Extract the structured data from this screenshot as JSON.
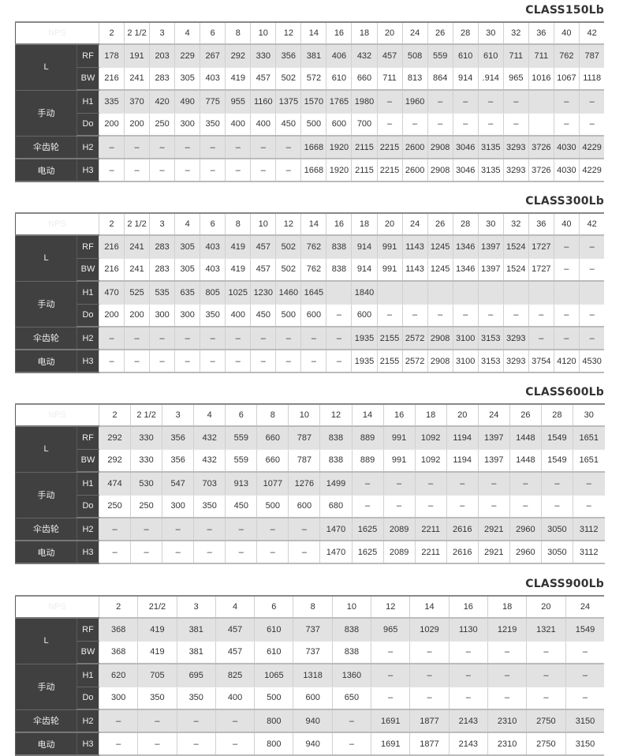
{
  "row_labels": {
    "nps": "NPS",
    "l": "L",
    "rf": "RF",
    "bw": "BW",
    "manual": "手动",
    "h1": "H1",
    "do": "Do",
    "bevel": "伞齿轮",
    "h2": "H2",
    "electric": "电动",
    "h3": "H3"
  },
  "tables": [
    {
      "title": "CLASS150Lb",
      "nps": [
        "2",
        "2 1/2",
        "3",
        "4",
        "6",
        "8",
        "10",
        "12",
        "14",
        "16",
        "18",
        "20",
        "24",
        "26",
        "28",
        "30",
        "32",
        "36",
        "40",
        "42"
      ],
      "rf": [
        "178",
        "191",
        "203",
        "229",
        "267",
        "292",
        "330",
        "356",
        "381",
        "406",
        "432",
        "457",
        "508",
        "559",
        "610",
        "610",
        "711",
        "711",
        "762",
        "787"
      ],
      "bw": [
        "216",
        "241",
        "283",
        "305",
        "403",
        "419",
        "457",
        "502",
        "572",
        "610",
        "660",
        "711",
        "813",
        "864",
        "914",
        ".914",
        "965",
        "1016",
        "1067",
        "1118"
      ],
      "h1": [
        "335",
        "370",
        "420",
        "490",
        "775",
        "955",
        "1160",
        "1375",
        "1570",
        "1765",
        "1980",
        "–",
        "1960",
        "–",
        "–",
        "–",
        "–",
        "",
        "–",
        "–"
      ],
      "do": [
        "200",
        "200",
        "250",
        "300",
        "350",
        "400",
        "400",
        "450",
        "500",
        "600",
        "700",
        "–",
        "–",
        "–",
        "–",
        "–",
        "–",
        "",
        "–",
        "–"
      ],
      "h2": [
        "–",
        "–",
        "–",
        "–",
        "–",
        "–",
        "–",
        "–",
        "1668",
        "1920",
        "2115",
        "2215",
        "2600",
        "2908",
        "3046",
        "3135",
        "3293",
        "3726",
        "4030",
        "4229"
      ],
      "h3": [
        "–",
        "–",
        "–",
        "–",
        "–",
        "–",
        "–",
        "–",
        "1668",
        "1920",
        "2115",
        "2215",
        "2600",
        "2908",
        "3046",
        "3135",
        "3293",
        "3726",
        "4030",
        "4229"
      ]
    },
    {
      "title": "CLASS300Lb",
      "nps": [
        "2",
        "2 1/2",
        "3",
        "4",
        "6",
        "8",
        "10",
        "12",
        "14",
        "16",
        "18",
        "20",
        "24",
        "26",
        "28",
        "30",
        "32",
        "36",
        "40",
        "42"
      ],
      "rf": [
        "216",
        "241",
        "283",
        "305",
        "403",
        "419",
        "457",
        "502",
        "762",
        "838",
        "914",
        "991",
        "1143",
        "1245",
        "1346",
        "1397",
        "1524",
        "1727",
        "–",
        "–"
      ],
      "bw": [
        "216",
        "241",
        "283",
        "305",
        "403",
        "419",
        "457",
        "502",
        "762",
        "838",
        "914",
        "991",
        "1143",
        "1245",
        "1346",
        "1397",
        "1524",
        "1727",
        "–",
        "–"
      ],
      "h1": [
        "470",
        "525",
        "535",
        "635",
        "805",
        "1025",
        "1230",
        "1460",
        "1645",
        "",
        "1840",
        "",
        "",
        "",
        "",
        "",
        "",
        "",
        "",
        ""
      ],
      "do": [
        "200",
        "200",
        "300",
        "300",
        "350",
        "400",
        "450",
        "500",
        "600",
        "–",
        "600",
        "–",
        "–",
        "–",
        "–",
        "–",
        "–",
        "–",
        "–",
        "–"
      ],
      "h2": [
        "–",
        "–",
        "–",
        "–",
        "–",
        "–",
        "–",
        "–",
        "–",
        "–",
        "1935",
        "2155",
        "2572",
        "2908",
        "3100",
        "3153",
        "3293",
        "–",
        "–",
        "–"
      ],
      "h3": [
        "–",
        "–",
        "–",
        "–",
        "–",
        "–",
        "–",
        "–",
        "–",
        "–",
        "1935",
        "2155",
        "2572",
        "2908",
        "3100",
        "3153",
        "3293",
        "3754",
        "4120",
        "4530"
      ]
    },
    {
      "title": "CLASS600Lb",
      "nps": [
        "2",
        "2 1/2",
        "3",
        "4",
        "6",
        "8",
        "10",
        "12",
        "14",
        "16",
        "18",
        "20",
        "24",
        "26",
        "28",
        "30"
      ],
      "rf": [
        "292",
        "330",
        "356",
        "432",
        "559",
        "660",
        "787",
        "838",
        "889",
        "991",
        "1092",
        "1194",
        "1397",
        "1448",
        "1549",
        "1651"
      ],
      "bw": [
        "292",
        "330",
        "356",
        "432",
        "559",
        "660",
        "787",
        "838",
        "889",
        "991",
        "1092",
        "1194",
        "1397",
        "1448",
        "1549",
        "1651"
      ],
      "h1": [
        "474",
        "530",
        "547",
        "703",
        "913",
        "1077",
        "1276",
        "1499",
        "–",
        "–",
        "–",
        "–",
        "–",
        "–",
        "–",
        "–"
      ],
      "do": [
        "250",
        "250",
        "300",
        "350",
        "450",
        "500",
        "600",
        "680",
        "–",
        "–",
        "–",
        "–",
        "–",
        "–",
        "–",
        "–"
      ],
      "h2": [
        "–",
        "–",
        "–",
        "–",
        "–",
        "–",
        "–",
        "1470",
        "1625",
        "2089",
        "2211",
        "2616",
        "2921",
        "2960",
        "3050",
        "3112"
      ],
      "h3": [
        "–",
        "–",
        "–",
        "–",
        "–",
        "–",
        "–",
        "1470",
        "1625",
        "2089",
        "2211",
        "2616",
        "2921",
        "2960",
        "3050",
        "3112"
      ]
    },
    {
      "title": "CLASS900Lb",
      "nps": [
        "2",
        "21/2",
        "3",
        "4",
        "6",
        "8",
        "10",
        "12",
        "14",
        "16",
        "18",
        "20",
        "24"
      ],
      "rf": [
        "368",
        "419",
        "381",
        "457",
        "610",
        "737",
        "838",
        "965",
        "1029",
        "1130",
        "1219",
        "1321",
        "1549"
      ],
      "bw": [
        "368",
        "419",
        "381",
        "457",
        "610",
        "737",
        "838",
        "–",
        "–",
        "–",
        "–",
        "–",
        "–"
      ],
      "h1": [
        "620",
        "705",
        "695",
        "825",
        "1065",
        "1318",
        "1360",
        "–",
        "–",
        "–",
        "–",
        "–",
        "–"
      ],
      "do": [
        "300",
        "350",
        "350",
        "400",
        "500",
        "600",
        "650",
        "–",
        "–",
        "–",
        "–",
        "–",
        "–"
      ],
      "h2": [
        "–",
        "–",
        "–",
        "–",
        "800",
        "940",
        "–",
        "1691",
        "1877",
        "2143",
        "2310",
        "2750",
        "3150"
      ],
      "h3": [
        "–",
        "–",
        "–",
        "–",
        "800",
        "940",
        "–",
        "1691",
        "1877",
        "2143",
        "2310",
        "2750",
        "3150"
      ]
    }
  ]
}
